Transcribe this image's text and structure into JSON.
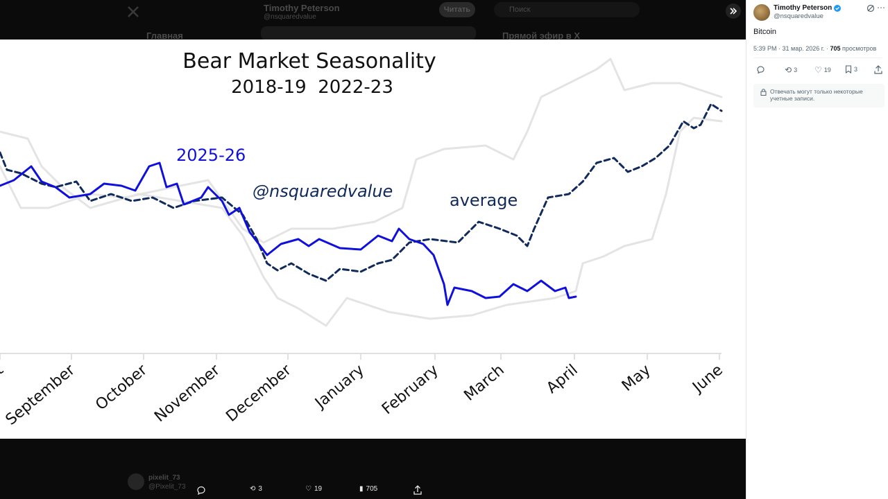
{
  "background": {
    "nav_home": "Главная",
    "author": "Timothy Peterson",
    "handle": "@nsquaredvalue",
    "follow": "Читать",
    "search": "Поиск",
    "live": "Прямой эфир в X",
    "reply_user": "pixelit_73",
    "reply_handle": "@Pixelit_73"
  },
  "chart": {
    "title": "Bear Market Seasonality",
    "subtitle": "2018-19  2022-23",
    "label_current": "2025-26",
    "watermark": "@nsquaredvalue",
    "label_average": "average",
    "months": [
      "August",
      "September",
      "October",
      "November",
      "December",
      "January",
      "February",
      "March",
      "April",
      "May",
      "June"
    ]
  },
  "viewer_actions": {
    "retweets": 3,
    "likes": 19,
    "views": 705
  },
  "tweet": {
    "author": "Timothy Peterson",
    "handle": "@nsquaredvalue",
    "text": "Bitcoin",
    "time": "5:39 PM · 31 мар. 2026 г. ·",
    "views": 705,
    "views_label": "просмотров",
    "retweets": 3,
    "likes": 19,
    "bookmarks": 3,
    "reply_note": "Отвечать могут только некоторые учетные записи."
  }
}
